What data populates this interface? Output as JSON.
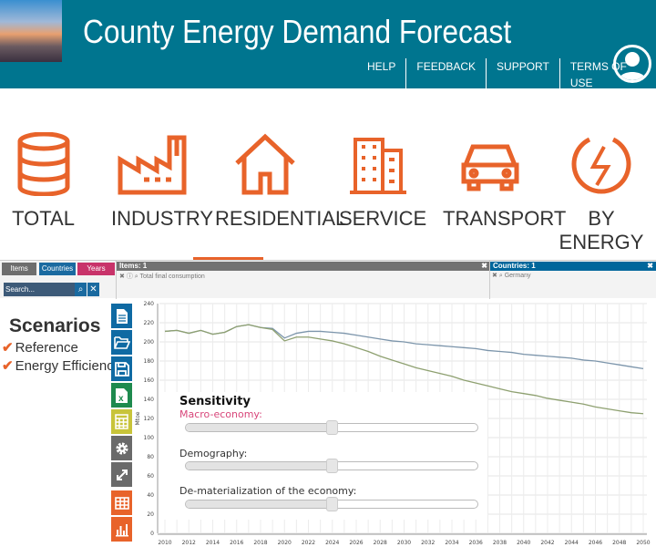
{
  "header": {
    "title": "County Energy Demand Forecast",
    "nav": [
      "HELP",
      "FEEDBACK",
      "SUPPORT",
      "TERMS OF USE"
    ]
  },
  "categories": [
    "TOTAL",
    "INDUSTRY",
    "RESIDENTIAL",
    "SERVICE",
    "TRANSPORT",
    "BY ENERGY"
  ],
  "selected_category": "RESIDENTIAL",
  "filters": {
    "tabs": [
      "Items",
      "Countries",
      "Years"
    ],
    "search_placeholder": "Search...",
    "items_header": "Items: 1",
    "items_value": "Total final consumption",
    "countries_header": "Countries: 1",
    "countries_value": "Germany"
  },
  "scenarios": {
    "title": "Scenarios",
    "items": [
      "Reference",
      "Energy Efficiency"
    ]
  },
  "sensitivity": {
    "title": "Sensitivity",
    "sliders": [
      {
        "label": "Macro-economy:",
        "value": 0.5
      },
      {
        "label": "Demography:",
        "value": 0.5
      },
      {
        "label": "De-materialization of the economy:",
        "value": 0.5
      }
    ]
  },
  "colors": {
    "header": "#00758f",
    "accent": "#e8632a",
    "reference": "#7c95ab",
    "efficiency": "#8ea070"
  },
  "chart_data": {
    "type": "line",
    "ylabel": "Mtoe",
    "ylim": [
      0,
      240
    ],
    "yticks": [
      "0",
      "20",
      "40",
      "60",
      "80",
      "100",
      "120",
      "140",
      "160",
      "180",
      "200",
      "220",
      "240"
    ],
    "xticks": [
      "2010",
      "2012",
      "2014",
      "2016",
      "2018",
      "2020",
      "2022",
      "2024",
      "2026",
      "2028",
      "2030",
      "2032",
      "2034",
      "2036",
      "2038",
      "2040",
      "2042",
      "2044",
      "2046",
      "2048",
      "2050"
    ],
    "x_start": 2010,
    "series": [
      {
        "name": "Reference",
        "values": [
          211,
          212,
          209,
          212,
          208,
          210,
          216,
          218,
          215,
          214,
          204,
          209,
          211,
          211,
          210,
          209,
          207,
          205,
          203,
          201,
          200,
          198,
          197,
          196,
          195,
          194,
          193,
          191,
          190,
          189,
          187,
          186,
          185,
          184,
          183,
          181,
          180,
          178,
          176,
          174,
          172
        ]
      },
      {
        "name": "Energy Efficiency",
        "values": [
          211,
          212,
          209,
          212,
          208,
          210,
          216,
          218,
          215,
          213,
          201,
          205,
          205,
          203,
          201,
          198,
          194,
          190,
          185,
          181,
          177,
          173,
          170,
          167,
          164,
          160,
          157,
          154,
          151,
          148,
          146,
          144,
          141,
          139,
          137,
          135,
          132,
          130,
          128,
          126,
          125
        ]
      }
    ]
  }
}
